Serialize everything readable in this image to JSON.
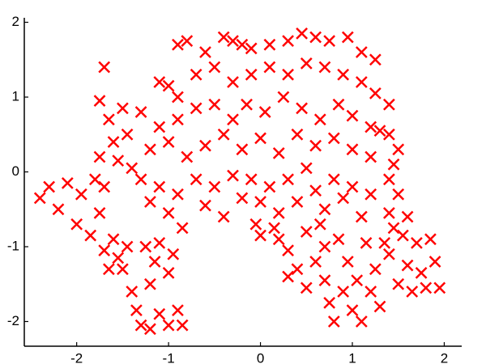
{
  "chart_data": {
    "type": "scatter",
    "color": "#ff0000",
    "marker": "x",
    "x": [
      -0.9,
      -0.8,
      -0.6,
      -0.4,
      -0.3,
      -0.2,
      -0.1,
      0.1,
      0.3,
      0.45,
      0.6,
      0.75,
      0.95,
      1.1,
      1.25,
      -1.1,
      -1.0,
      -0.9,
      -0.7,
      -0.5,
      -0.3,
      -0.1,
      0.1,
      0.3,
      0.5,
      0.7,
      0.9,
      1.1,
      1.25,
      1.4,
      -1.3,
      -1.1,
      -0.9,
      -0.7,
      -0.5,
      -0.3,
      -0.15,
      0.05,
      0.25,
      0.45,
      0.65,
      0.85,
      1.0,
      1.2,
      1.4,
      -1.2,
      -1.0,
      -0.8,
      -0.6,
      -0.4,
      -0.2,
      0.0,
      0.2,
      0.4,
      0.6,
      0.8,
      1.0,
      1.2,
      1.45,
      -2.4,
      -2.3,
      -2.2,
      -2.1,
      -2.0,
      -1.95,
      -1.85,
      -1.8,
      -1.75,
      -1.7,
      -1.7,
      -1.75,
      -1.65,
      -1.6,
      -1.55,
      -1.5,
      -1.45,
      -1.4,
      -1.75,
      -1.3,
      -1.2,
      -1.1,
      -1.0,
      -0.9,
      -0.85,
      -0.7,
      -0.6,
      -0.5,
      -0.4,
      -0.3,
      -0.2,
      -0.1,
      0.0,
      0.1,
      0.2,
      0.3,
      0.4,
      0.5,
      0.6,
      0.7,
      0.8,
      0.9,
      1.0,
      1.1,
      1.2,
      0.2,
      0.3,
      0.15,
      0.5,
      0.65,
      0.0,
      -0.05,
      1.4,
      1.5,
      1.4,
      1.5,
      1.3,
      1.45,
      1.6,
      -1.6,
      -1.55,
      -1.45,
      -1.5,
      -1.4,
      -1.35,
      -1.3,
      -1.2,
      -1.15,
      -1.1,
      -1.0,
      -0.9,
      -0.85,
      -1.1,
      -1.0,
      -1.7,
      -1.65,
      -1.25,
      -0.95,
      -1.2,
      0.4,
      0.5,
      0.6,
      0.7,
      0.75,
      0.8,
      0.9,
      0.95,
      1.0,
      1.05,
      1.1,
      1.2,
      1.25,
      1.3,
      1.4,
      1.5,
      1.6,
      1.65,
      1.7,
      1.75,
      1.8,
      1.85,
      1.9,
      1.95,
      1.55,
      0.85,
      0.3,
      0.7,
      1.35,
      1.15
    ],
    "values": [
      1.7,
      1.75,
      1.6,
      1.8,
      1.75,
      1.7,
      1.65,
      1.7,
      1.75,
      1.85,
      1.8,
      1.75,
      1.8,
      1.6,
      1.5,
      1.2,
      1.15,
      1.0,
      1.3,
      1.4,
      1.2,
      1.3,
      1.4,
      1.3,
      1.45,
      1.4,
      1.3,
      1.2,
      1.05,
      0.9,
      0.8,
      0.6,
      0.7,
      0.85,
      0.9,
      0.7,
      0.9,
      0.8,
      1.0,
      0.85,
      0.7,
      0.9,
      0.75,
      0.6,
      0.5,
      0.3,
      0.4,
      0.2,
      0.35,
      0.5,
      0.3,
      0.45,
      0.25,
      0.5,
      0.35,
      0.45,
      0.3,
      0.2,
      0.1,
      -0.35,
      -0.2,
      -0.5,
      -0.15,
      -0.7,
      -0.3,
      -0.85,
      -0.1,
      -0.55,
      -0.2,
      1.4,
      0.95,
      0.7,
      0.4,
      0.15,
      0.85,
      0.5,
      0.05,
      0.2,
      -0.1,
      -0.4,
      -0.2,
      -0.55,
      -0.3,
      -0.75,
      -0.1,
      -0.45,
      -0.2,
      -0.6,
      -0.05,
      -0.35,
      -0.1,
      -0.4,
      -0.2,
      -0.55,
      -0.1,
      -0.4,
      0.05,
      -0.25,
      -0.5,
      -0.1,
      -0.35,
      -0.2,
      -0.6,
      -0.3,
      -0.9,
      -1.05,
      -0.75,
      -0.8,
      -0.7,
      -0.85,
      -0.7,
      -0.1,
      -0.3,
      -0.55,
      0.3,
      0.55,
      -0.75,
      -0.6,
      -0.9,
      -1.15,
      -1.0,
      -1.3,
      -1.6,
      -1.85,
      -2.05,
      -1.5,
      -1.2,
      -1.9,
      -2.05,
      -1.85,
      -2.05,
      -0.95,
      -1.35,
      -1.05,
      -1.3,
      -1.0,
      -1.1,
      -2.1,
      -1.3,
      -1.55,
      -1.2,
      -1.45,
      -1.75,
      -2.0,
      -1.6,
      -1.2,
      -1.85,
      -1.45,
      -2.0,
      -1.6,
      -1.3,
      -1.8,
      -1.1,
      -1.5,
      -1.25,
      -1.6,
      -0.95,
      -1.35,
      -1.55,
      -0.9,
      -1.2,
      -1.55,
      -0.85,
      -0.9,
      -1.4,
      -1.0,
      -0.95,
      -0.95
    ],
    "xlim": [
      -2.57,
      2.19
    ],
    "ylim": [
      -2.33,
      2.06
    ],
    "xticks": [
      -2,
      -1,
      0,
      1,
      2
    ],
    "yticks": [
      -2,
      -1,
      0,
      1,
      2
    ]
  }
}
